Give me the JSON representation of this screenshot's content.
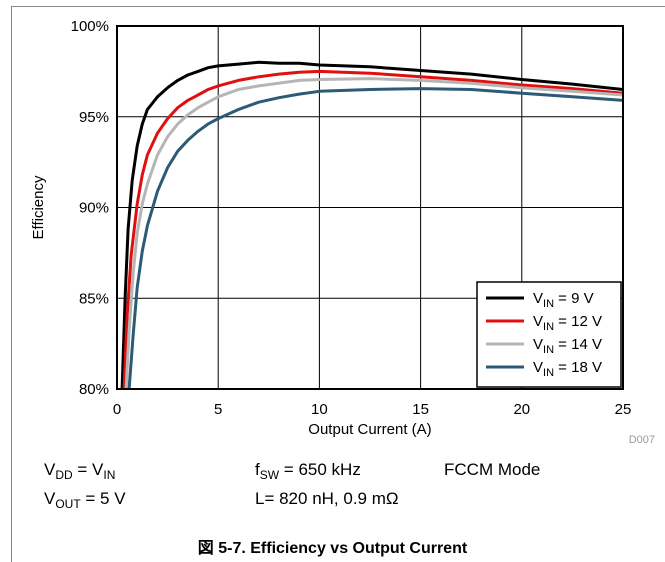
{
  "chart_data": {
    "type": "line",
    "title": "",
    "xlabel": "Output Current (A)",
    "ylabel": "Efficiency",
    "xlim": [
      0,
      25
    ],
    "ylim": [
      80,
      100
    ],
    "grid": true,
    "legend_position": "bottom-right",
    "x_ticks": [
      "0",
      "5",
      "10",
      "15",
      "20",
      "25"
    ],
    "y_ticks": [
      "80%",
      "85%",
      "90%",
      "95%",
      "100%"
    ],
    "series": [
      {
        "name": "V_IN = 9 V",
        "color": "#000000",
        "points": [
          [
            0.25,
            80.0
          ],
          [
            0.4,
            85.0
          ],
          [
            0.55,
            88.8
          ],
          [
            0.75,
            91.5
          ],
          [
            1.0,
            93.4
          ],
          [
            1.25,
            94.6
          ],
          [
            1.5,
            95.4
          ],
          [
            2.0,
            96.1
          ],
          [
            2.5,
            96.6
          ],
          [
            3.0,
            97.0
          ],
          [
            3.5,
            97.3
          ],
          [
            4.0,
            97.5
          ],
          [
            4.5,
            97.7
          ],
          [
            5.0,
            97.8
          ],
          [
            6.0,
            97.9
          ],
          [
            7.0,
            98.0
          ],
          [
            8.0,
            97.95
          ],
          [
            9.0,
            97.95
          ],
          [
            10.0,
            97.85
          ],
          [
            12.5,
            97.75
          ],
          [
            15.0,
            97.55
          ],
          [
            17.5,
            97.35
          ],
          [
            20.0,
            97.05
          ],
          [
            22.5,
            96.8
          ],
          [
            25.0,
            96.5
          ]
        ]
      },
      {
        "name": "V_IN = 12 V",
        "color": "#e01010",
        "points": [
          [
            0.35,
            80.0
          ],
          [
            0.5,
            84.0
          ],
          [
            0.7,
            87.4
          ],
          [
            1.0,
            90.2
          ],
          [
            1.25,
            91.8
          ],
          [
            1.5,
            92.9
          ],
          [
            2.0,
            94.1
          ],
          [
            2.5,
            94.9
          ],
          [
            3.0,
            95.5
          ],
          [
            3.5,
            95.9
          ],
          [
            4.0,
            96.2
          ],
          [
            4.5,
            96.5
          ],
          [
            5.0,
            96.7
          ],
          [
            6.0,
            97.0
          ],
          [
            7.0,
            97.2
          ],
          [
            8.0,
            97.35
          ],
          [
            9.0,
            97.45
          ],
          [
            10.0,
            97.5
          ],
          [
            12.5,
            97.4
          ],
          [
            15.0,
            97.2
          ],
          [
            17.5,
            97.0
          ],
          [
            20.0,
            96.75
          ],
          [
            22.5,
            96.55
          ],
          [
            25.0,
            96.3
          ]
        ]
      },
      {
        "name": "V_IN = 14 V",
        "color": "#b5b5b5",
        "points": [
          [
            0.45,
            80.0
          ],
          [
            0.6,
            83.2
          ],
          [
            0.8,
            86.4
          ],
          [
            1.0,
            88.6
          ],
          [
            1.25,
            90.2
          ],
          [
            1.5,
            91.3
          ],
          [
            2.0,
            92.9
          ],
          [
            2.5,
            93.9
          ],
          [
            3.0,
            94.6
          ],
          [
            3.5,
            95.1
          ],
          [
            4.0,
            95.5
          ],
          [
            4.5,
            95.8
          ],
          [
            5.0,
            96.1
          ],
          [
            6.0,
            96.5
          ],
          [
            7.0,
            96.7
          ],
          [
            8.0,
            96.85
          ],
          [
            9.0,
            97.0
          ],
          [
            10.0,
            97.05
          ],
          [
            12.5,
            97.1
          ],
          [
            15.0,
            97.0
          ],
          [
            17.5,
            96.85
          ],
          [
            20.0,
            96.6
          ],
          [
            22.5,
            96.4
          ],
          [
            25.0,
            96.2
          ]
        ]
      },
      {
        "name": "V_IN = 18 V",
        "color": "#2d5a75",
        "points": [
          [
            0.6,
            80.0
          ],
          [
            0.8,
            83.0
          ],
          [
            1.0,
            85.6
          ],
          [
            1.25,
            87.6
          ],
          [
            1.5,
            89.0
          ],
          [
            2.0,
            90.9
          ],
          [
            2.5,
            92.2
          ],
          [
            3.0,
            93.1
          ],
          [
            3.5,
            93.7
          ],
          [
            4.0,
            94.2
          ],
          [
            4.5,
            94.6
          ],
          [
            5.0,
            94.9
          ],
          [
            6.0,
            95.4
          ],
          [
            7.0,
            95.8
          ],
          [
            8.0,
            96.05
          ],
          [
            9.0,
            96.25
          ],
          [
            10.0,
            96.4
          ],
          [
            12.5,
            96.5
          ],
          [
            15.0,
            96.55
          ],
          [
            17.5,
            96.5
          ],
          [
            20.0,
            96.3
          ],
          [
            22.5,
            96.1
          ],
          [
            25.0,
            95.9
          ]
        ]
      }
    ]
  },
  "legend": [
    {
      "prefix": "V",
      "sub": "IN",
      "suffix": " = 9 V"
    },
    {
      "prefix": "V",
      "sub": "IN",
      "suffix": " = 12 V"
    },
    {
      "prefix": "V",
      "sub": "IN",
      "suffix": " = 14 V"
    },
    {
      "prefix": "V",
      "sub": "IN",
      "suffix": " = 18 V"
    }
  ],
  "figure_id": "D007",
  "conditions": {
    "vdd": {
      "v1": "V",
      "s1": "DD",
      "mid": " = V",
      "s2": "IN"
    },
    "fsw": {
      "f": "f",
      "s": "SW",
      "rest": " = 650 kHz"
    },
    "mode": "FCCM Mode",
    "vout": {
      "v": "V",
      "s": "OUT",
      "rest": " = 5 V"
    },
    "inductor": "L= 820 nH, 0.9 mΩ"
  },
  "caption": "図 5-7. Efficiency vs Output Current"
}
